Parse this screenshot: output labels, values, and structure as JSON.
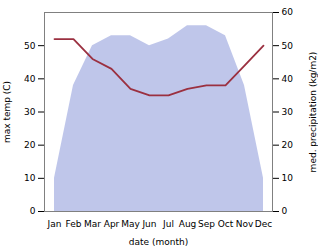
{
  "chart_data": {
    "type": "line",
    "categories": [
      "Jan",
      "Feb",
      "Mar",
      "Apr",
      "May",
      "Jun",
      "Jul",
      "Aug",
      "Sep",
      "Oct",
      "Nov",
      "Dec"
    ],
    "xlabel": "date (month)",
    "ylabel": "max temp (C)",
    "y2label": "med. precipitation (kg/m2)",
    "ylim": [
      0,
      60
    ],
    "yticks": [
      0,
      10,
      20,
      30,
      40,
      50
    ],
    "y2lim": [
      0,
      60
    ],
    "y2ticks": [
      0,
      10,
      20,
      30,
      40,
      50,
      60
    ],
    "grid": false,
    "series": [
      {
        "type": "area",
        "axis": "y2",
        "color": "#b8c0e8",
        "values": [
          10,
          38,
          50,
          53,
          53,
          50,
          52,
          56,
          56,
          53,
          38,
          10
        ]
      },
      {
        "type": "line",
        "color": "#9b3040",
        "values": [
          52,
          52,
          46,
          43,
          37,
          35,
          35,
          37,
          38,
          38,
          44,
          50
        ]
      }
    ]
  }
}
